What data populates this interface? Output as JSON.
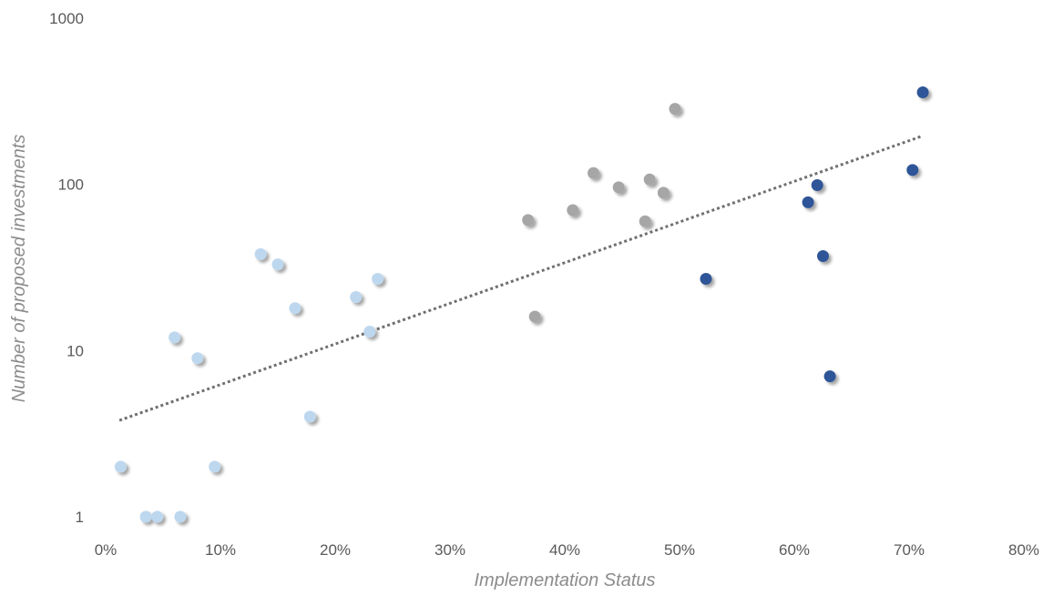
{
  "chart_data": {
    "type": "scatter",
    "title": "",
    "xlabel": "Implementation Status",
    "ylabel": "Number of proposed investments",
    "x_unit": "percent",
    "y_scale": "log",
    "xlim": [
      0,
      80
    ],
    "ylim": [
      1,
      1000
    ],
    "x_ticks": [
      "0%",
      "10%",
      "20%",
      "30%",
      "40%",
      "50%",
      "60%",
      "70%",
      "80%"
    ],
    "y_ticks": [
      "1",
      "10",
      "100",
      "1000"
    ],
    "grid": false,
    "legend": "none",
    "trendline": {
      "type": "exponential",
      "style": "dotted",
      "color": "#707070",
      "x_range": [
        1.2,
        71.1
      ],
      "y_at_start": 3.8,
      "y_at_end": 195
    },
    "series": [
      {
        "color": "#bdd7ee",
        "points": [
          {
            "x": 1.3,
            "y": 2
          },
          {
            "x": 3.5,
            "y": 1
          },
          {
            "x": 4.5,
            "y": 1
          },
          {
            "x": 6.0,
            "y": 12
          },
          {
            "x": 6.5,
            "y": 1
          },
          {
            "x": 8.0,
            "y": 9
          },
          {
            "x": 9.5,
            "y": 2
          },
          {
            "x": 13.5,
            "y": 38
          },
          {
            "x": 15.0,
            "y": 33
          },
          {
            "x": 16.5,
            "y": 18
          },
          {
            "x": 17.8,
            "y": 4
          },
          {
            "x": 21.8,
            "y": 21
          },
          {
            "x": 23.0,
            "y": 13
          },
          {
            "x": 23.7,
            "y": 27
          }
        ]
      },
      {
        "color": "#a6a6a6",
        "points": [
          {
            "x": 36.8,
            "y": 61
          },
          {
            "x": 37.4,
            "y": 16
          },
          {
            "x": 40.7,
            "y": 70
          },
          {
            "x": 42.5,
            "y": 117
          },
          {
            "x": 44.7,
            "y": 96
          },
          {
            "x": 47.0,
            "y": 60
          },
          {
            "x": 47.4,
            "y": 107
          },
          {
            "x": 48.6,
            "y": 89
          },
          {
            "x": 49.6,
            "y": 285
          }
        ]
      },
      {
        "color": "#2f5597",
        "points": [
          {
            "x": 52.3,
            "y": 27
          },
          {
            "x": 61.2,
            "y": 78
          },
          {
            "x": 62.0,
            "y": 99
          },
          {
            "x": 62.5,
            "y": 37
          },
          {
            "x": 63.1,
            "y": 7
          },
          {
            "x": 70.3,
            "y": 122
          },
          {
            "x": 71.2,
            "y": 358
          }
        ]
      }
    ]
  }
}
